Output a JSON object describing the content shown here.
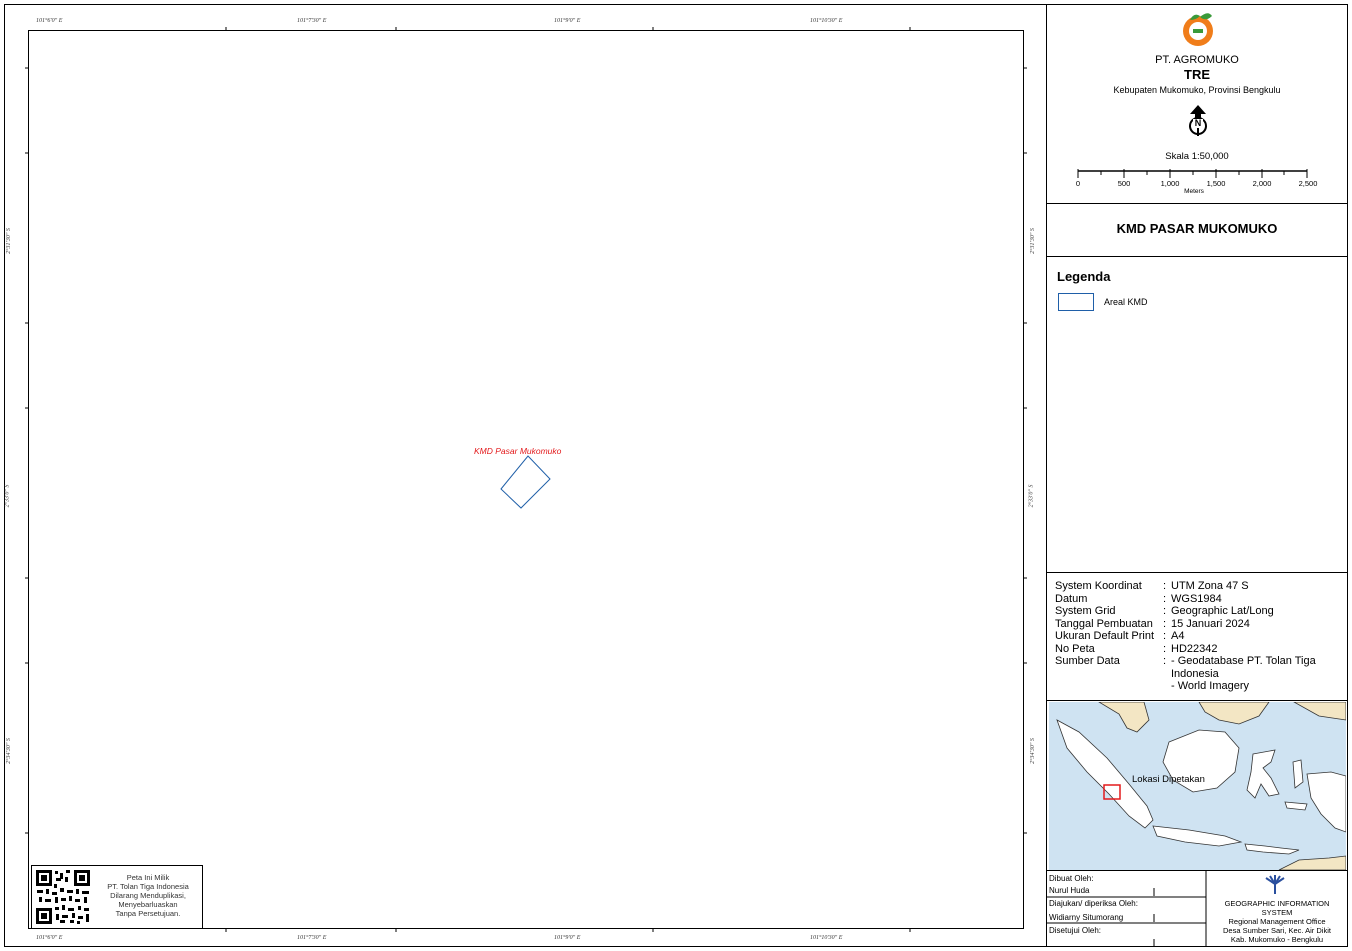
{
  "company": {
    "name": "PT. AGROMUKO",
    "unit": "TRE",
    "location": "Kebupaten Mukomuko, Provinsi Bengkulu"
  },
  "north_arrow": {
    "letter": "N"
  },
  "scale": {
    "label": "Skala 1:50,000",
    "ticks": [
      "0",
      "500",
      "1,000",
      "1,500",
      "2,000",
      "2,500"
    ],
    "unit": "Meters"
  },
  "map_title": "KMD PASAR MUKOMUKO",
  "legend": {
    "title": "Legenda",
    "items": [
      {
        "label": "Areal KMD",
        "color": "#1f5fa8"
      }
    ]
  },
  "feature": {
    "label": "KMD Pasar Mukomuko",
    "label_color": "#e31a1c",
    "outline_color": "#1f5fa8"
  },
  "grid": {
    "top_labels": [
      "101°6'0\" E",
      "101°7'30\" E",
      "101°9'0\" E",
      "101°10'30\" E"
    ],
    "bottom_labels": [
      "101°6'0\" E",
      "101°7'30\" E",
      "101°9'0\" E",
      "101°10'30\" E"
    ],
    "left_labels": [
      "2°31'30\" S",
      "2°33'0\" S",
      "2°34'30\" S"
    ],
    "right_labels": [
      "2°31'30\" S",
      "2°33'0\" S",
      "2°34'30\" S"
    ]
  },
  "info": [
    {
      "key": "System Koordinat",
      "value": "UTM Zona 47 S"
    },
    {
      "key": "Datum",
      "value": "WGS1984"
    },
    {
      "key": "System Grid",
      "value": "Geographic Lat/Long"
    },
    {
      "key": "Tanggal Pembuatan",
      "value": "15 Januari 2024"
    },
    {
      "key": "Ukuran Default Print",
      "value": "A4"
    },
    {
      "key": "No Peta",
      "value": "HD22342"
    },
    {
      "key": "Sumber Data",
      "value": "- Geodatabase PT. Tolan Tiga Indonesia"
    },
    {
      "key": "",
      "value": "- World Imagery"
    }
  ],
  "inset": {
    "label": "Lokasi Dipetakan",
    "marker_color": "#e31a1c",
    "land_color": "#ffffff",
    "sea_color": "#cfe3f2",
    "other_land_color": "#f3e6c4"
  },
  "qr_note": [
    "Peta Ini Milik",
    "PT. Tolan Tiga Indonesia",
    "Dilarang Menduplikasi,",
    "Menyebarluaskan",
    "Tanpa Persetujuan."
  ],
  "footer": {
    "made_by_label": "Dibuat Oleh:",
    "made_by": "Nurul Huda",
    "checked_label": "Diajukan/ diperiksa Oleh:",
    "checked_by": "Widiarny Situmorang",
    "approved_label": "Disetujui Oleh:",
    "org_lines": [
      "GEOGRAPHIC INFORMATION",
      "SYSTEM",
      "Regional Management Office",
      "Desa Sumber Sari, Kec. Air Dikit",
      "Kab. Mukomuko - Bengkulu"
    ]
  }
}
